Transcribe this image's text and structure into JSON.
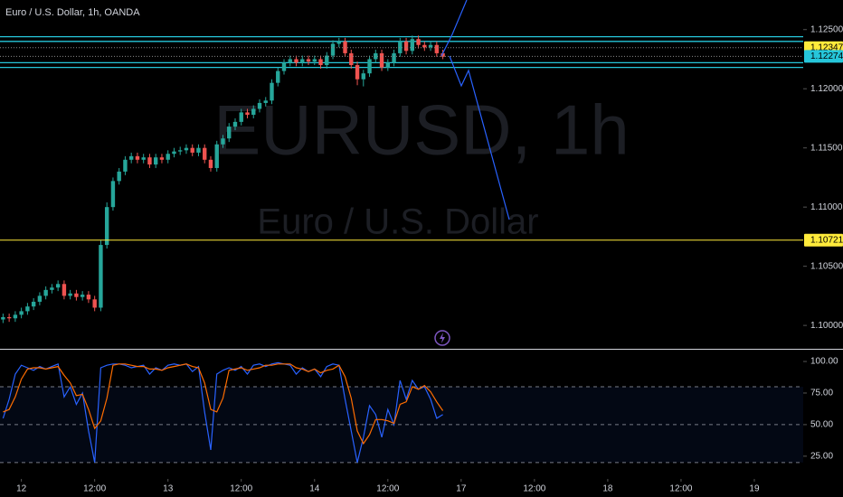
{
  "chart_data": [
    {
      "type": "candlestick",
      "title": "Euro / U.S. Dollar, 1h, OANDA",
      "watermark": "EURUSD, 1h",
      "watermark_subtitle": "Euro / U.S. Dollar",
      "up_color": "#26a69a",
      "down_color": "#ef5350",
      "xlim": [
        -0.5,
        131
      ],
      "ylim": [
        1.0981,
        1.1275
      ],
      "yticks": [
        {
          "value": 1.125,
          "label": "1.12500"
        },
        {
          "value": 1.12,
          "label": "1.12000"
        },
        {
          "value": 1.115,
          "label": "1.11500"
        },
        {
          "value": 1.11,
          "label": "1.11000"
        },
        {
          "value": 1.105,
          "label": "1.10500"
        },
        {
          "value": 1.1,
          "label": "1.10000"
        }
      ],
      "open": [
        1.1005,
        1.1007,
        1.1006,
        1.1009,
        1.1012,
        1.1016,
        1.102,
        1.1025,
        1.103,
        1.1032,
        1.1035,
        1.1025,
        1.1027,
        1.1024,
        1.1026,
        1.1022,
        1.1015,
        1.1068,
        1.11,
        1.1122,
        1.113,
        1.114,
        1.1143,
        1.114,
        1.1142,
        1.1136,
        1.1142,
        1.114,
        1.1145,
        1.1147,
        1.1148,
        1.115,
        1.1146,
        1.115,
        1.114,
        1.1133,
        1.1153,
        1.1158,
        1.1168,
        1.1172,
        1.118,
        1.1178,
        1.1183,
        1.1188,
        1.119,
        1.1205,
        1.1215,
        1.1222,
        1.1225,
        1.1222,
        1.1225,
        1.1223,
        1.1225,
        1.122,
        1.1228,
        1.1238,
        1.124,
        1.123,
        1.122,
        1.1208,
        1.1213,
        1.1225,
        1.123,
        1.1218,
        1.1222,
        1.123,
        1.124,
        1.1232,
        1.1242,
        1.1237,
        1.1235,
        1.1237,
        1.123
      ],
      "high": [
        1.101,
        1.101,
        1.1012,
        1.1015,
        1.1019,
        1.1023,
        1.1028,
        1.1033,
        1.1035,
        1.1038,
        1.1038,
        1.103,
        1.103,
        1.1029,
        1.1029,
        1.1025,
        1.1072,
        1.1104,
        1.1125,
        1.1133,
        1.1143,
        1.1146,
        1.1146,
        1.1145,
        1.1145,
        1.1145,
        1.1145,
        1.1148,
        1.115,
        1.1151,
        1.1153,
        1.1153,
        1.1153,
        1.1153,
        1.1143,
        1.1156,
        1.1161,
        1.1171,
        1.1175,
        1.1183,
        1.1183,
        1.1186,
        1.1191,
        1.1193,
        1.1208,
        1.1218,
        1.1225,
        1.1228,
        1.1228,
        1.1228,
        1.1228,
        1.1228,
        1.1228,
        1.1231,
        1.1241,
        1.1243,
        1.1243,
        1.1233,
        1.1223,
        1.1216,
        1.1228,
        1.1233,
        1.1233,
        1.1225,
        1.1233,
        1.1243,
        1.1243,
        1.1245,
        1.1245,
        1.124,
        1.124,
        1.124,
        1.1233
      ],
      "low": [
        1.1002,
        1.1003,
        1.1003,
        1.1006,
        1.1009,
        1.1013,
        1.1017,
        1.1022,
        1.1027,
        1.1029,
        1.1022,
        1.1022,
        1.1021,
        1.1021,
        1.1019,
        1.1012,
        1.1012,
        1.1065,
        1.1097,
        1.1119,
        1.1127,
        1.1137,
        1.1137,
        1.1137,
        1.1133,
        1.1133,
        1.1137,
        1.1137,
        1.1142,
        1.1144,
        1.1145,
        1.1143,
        1.1143,
        1.1137,
        1.113,
        1.113,
        1.115,
        1.1155,
        1.1165,
        1.1169,
        1.1175,
        1.1175,
        1.118,
        1.1185,
        1.1187,
        1.1202,
        1.1212,
        1.1219,
        1.1219,
        1.1219,
        1.122,
        1.122,
        1.1217,
        1.1217,
        1.1225,
        1.1235,
        1.1227,
        1.1217,
        1.1203,
        1.1202,
        1.121,
        1.1222,
        1.1215,
        1.1215,
        1.1219,
        1.1227,
        1.1229,
        1.1229,
        1.1234,
        1.1232,
        1.1232,
        1.1227,
        1.1225
      ],
      "close": [
        1.1007,
        1.1006,
        1.1009,
        1.1012,
        1.1016,
        1.102,
        1.1025,
        1.103,
        1.1032,
        1.1035,
        1.1025,
        1.1027,
        1.1024,
        1.1026,
        1.1022,
        1.1015,
        1.1068,
        1.11,
        1.1122,
        1.113,
        1.114,
        1.1143,
        1.114,
        1.1142,
        1.1136,
        1.1142,
        1.114,
        1.1145,
        1.1147,
        1.1148,
        1.115,
        1.1146,
        1.115,
        1.114,
        1.1133,
        1.1153,
        1.1158,
        1.1168,
        1.1172,
        1.118,
        1.1178,
        1.1183,
        1.1188,
        1.119,
        1.1205,
        1.1215,
        1.1222,
        1.1225,
        1.1222,
        1.1225,
        1.1223,
        1.1225,
        1.122,
        1.1228,
        1.1238,
        1.124,
        1.123,
        1.122,
        1.1208,
        1.1213,
        1.1225,
        1.123,
        1.1218,
        1.1222,
        1.123,
        1.124,
        1.1232,
        1.1242,
        1.1237,
        1.1235,
        1.1237,
        1.123,
        1.1227
      ],
      "horizontal_lines": [
        {
          "value": 1.1244,
          "color": "#26c6da"
        },
        {
          "value": 1.124,
          "color": "#26c6da"
        },
        {
          "value": 1.1222,
          "color": "#26c6da"
        },
        {
          "value": 1.1218,
          "color": "#26c6da"
        }
      ],
      "price_labels": [
        {
          "value": 1.12347,
          "color": "#ffeb3b",
          "line": "dotted"
        },
        {
          "value": 1.12274,
          "color": "#26c6da",
          "line": "dotted"
        },
        {
          "value": 1.10721,
          "color": "#ffeb3b",
          "line": "solid"
        }
      ]
    },
    {
      "type": "line",
      "xlim": [
        -0.5,
        131
      ],
      "ylim": [
        7,
        108.6
      ],
      "yticks": [
        {
          "value": 100,
          "label": "100.00"
        },
        {
          "value": 75,
          "label": "75.00"
        },
        {
          "value": 50,
          "label": "50.00"
        },
        {
          "value": 25,
          "label": "25.00"
        }
      ],
      "bands": [
        80,
        50,
        20
      ],
      "band_color": "#2962ff",
      "xticks": [
        {
          "value": 3,
          "label": "12"
        },
        {
          "value": 15,
          "label": "12:00"
        },
        {
          "value": 27,
          "label": "13"
        },
        {
          "value": 39,
          "label": "12:00"
        },
        {
          "value": 51,
          "label": "14"
        },
        {
          "value": 63,
          "label": "12:00"
        },
        {
          "value": 75,
          "label": "17"
        },
        {
          "value": 87,
          "label": "12:00"
        },
        {
          "value": 99,
          "label": "18"
        },
        {
          "value": 111,
          "label": "12:00"
        },
        {
          "value": 123,
          "label": "19"
        }
      ],
      "series": [
        {
          "color": "#2962ff",
          "values": [
            55,
            70,
            90,
            97,
            95,
            93,
            96,
            94,
            96,
            98,
            72,
            80,
            66,
            75,
            45,
            20,
            95,
            97,
            98,
            98,
            97,
            95,
            96,
            97,
            90,
            95,
            93,
            97,
            98,
            97,
            98,
            92,
            96,
            60,
            30,
            90,
            93,
            95,
            93,
            96,
            90,
            97,
            98,
            96,
            98,
            99,
            98,
            97,
            90,
            95,
            92,
            94,
            88,
            96,
            98,
            97,
            70,
            45,
            20,
            40,
            65,
            58,
            40,
            62,
            50,
            85,
            70,
            85,
            78,
            80,
            70,
            55,
            58
          ]
        },
        {
          "color": "#ff6d00",
          "values": [
            60,
            62,
            72,
            86,
            94,
            95,
            95,
            94,
            95,
            96,
            89,
            83,
            73,
            74,
            62,
            47,
            53,
            71,
            97,
            98,
            98,
            97,
            96,
            96,
            94,
            94,
            93,
            95,
            96,
            97,
            98,
            96,
            95,
            83,
            62,
            60,
            71,
            93,
            94,
            95,
            93,
            94,
            95,
            97,
            97,
            98,
            98,
            98,
            95,
            94,
            92,
            94,
            91,
            93,
            94,
            97,
            88,
            71,
            45,
            35,
            42,
            54,
            54,
            53,
            51,
            66,
            68,
            80,
            78,
            81,
            76,
            68,
            61
          ]
        }
      ]
    }
  ]
}
